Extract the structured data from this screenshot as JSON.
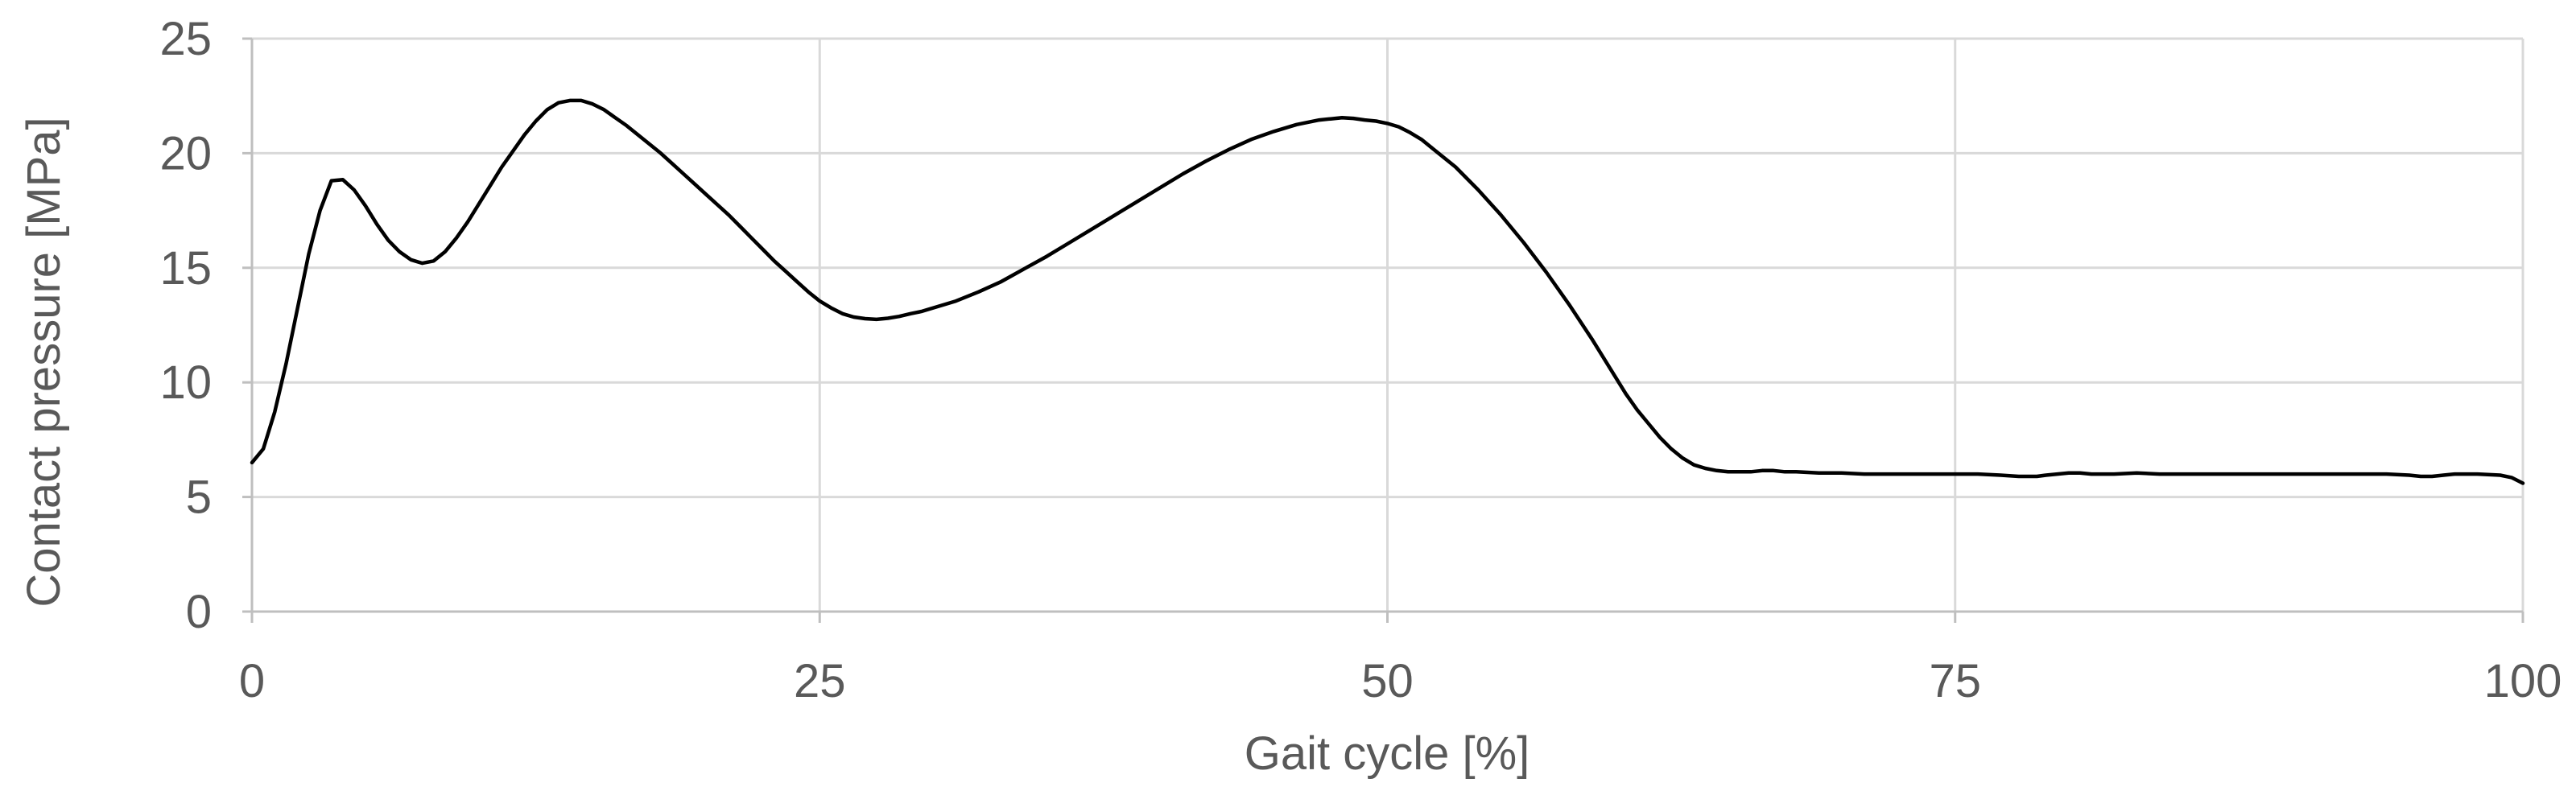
{
  "chart_data": {
    "type": "line",
    "title": "",
    "xlabel": "Gait cycle [%]",
    "ylabel": "Contact pressure [MPa]",
    "xlim": [
      0,
      100
    ],
    "ylim": [
      0,
      25
    ],
    "x_ticks": [
      0,
      25,
      50,
      75,
      100
    ],
    "y_ticks": [
      0,
      5,
      10,
      15,
      20,
      25
    ],
    "grid": true,
    "legend_position": "none",
    "line_color": "#000000",
    "line_width": 4.5,
    "series": [
      {
        "name": "Contact pressure",
        "points": [
          [
            0,
            6.5
          ],
          [
            0.5,
            7.1
          ],
          [
            1,
            8.7
          ],
          [
            1.5,
            10.8
          ],
          [
            2,
            13.2
          ],
          [
            2.5,
            15.6
          ],
          [
            3,
            17.5
          ],
          [
            3.5,
            18.8
          ],
          [
            4,
            18.85
          ],
          [
            4.5,
            18.4
          ],
          [
            5,
            17.7
          ],
          [
            5.5,
            16.9
          ],
          [
            6,
            16.2
          ],
          [
            6.5,
            15.7
          ],
          [
            7,
            15.35
          ],
          [
            7.5,
            15.2
          ],
          [
            8,
            15.3
          ],
          [
            8.5,
            15.7
          ],
          [
            9,
            16.3
          ],
          [
            9.5,
            17.0
          ],
          [
            10,
            17.8
          ],
          [
            10.5,
            18.6
          ],
          [
            11,
            19.4
          ],
          [
            11.5,
            20.1
          ],
          [
            12,
            20.8
          ],
          [
            12.5,
            21.4
          ],
          [
            13,
            21.9
          ],
          [
            13.5,
            22.2
          ],
          [
            14,
            22.3
          ],
          [
            14.5,
            22.3
          ],
          [
            15,
            22.15
          ],
          [
            15.5,
            21.9
          ],
          [
            16,
            21.55
          ],
          [
            16.5,
            21.2
          ],
          [
            17,
            20.8
          ],
          [
            17.5,
            20.4
          ],
          [
            18,
            20.0
          ],
          [
            18.5,
            19.55
          ],
          [
            19,
            19.1
          ],
          [
            19.5,
            18.65
          ],
          [
            20,
            18.2
          ],
          [
            20.5,
            17.75
          ],
          [
            21,
            17.3
          ],
          [
            21.5,
            16.8
          ],
          [
            22,
            16.3
          ],
          [
            22.5,
            15.8
          ],
          [
            23,
            15.3
          ],
          [
            23.5,
            14.85
          ],
          [
            24,
            14.4
          ],
          [
            24.5,
            13.95
          ],
          [
            25,
            13.55
          ],
          [
            25.5,
            13.25
          ],
          [
            26,
            13.0
          ],
          [
            26.5,
            12.85
          ],
          [
            27,
            12.78
          ],
          [
            27.5,
            12.75
          ],
          [
            28,
            12.8
          ],
          [
            28.5,
            12.88
          ],
          [
            29,
            13.0
          ],
          [
            29.5,
            13.1
          ],
          [
            30,
            13.25
          ],
          [
            31,
            13.55
          ],
          [
            32,
            13.95
          ],
          [
            33,
            14.4
          ],
          [
            34,
            14.95
          ],
          [
            35,
            15.5
          ],
          [
            36,
            16.1
          ],
          [
            37,
            16.7
          ],
          [
            38,
            17.3
          ],
          [
            39,
            17.9
          ],
          [
            40,
            18.5
          ],
          [
            41,
            19.1
          ],
          [
            42,
            19.65
          ],
          [
            43,
            20.15
          ],
          [
            44,
            20.6
          ],
          [
            45,
            20.95
          ],
          [
            46,
            21.25
          ],
          [
            47,
            21.45
          ],
          [
            47.5,
            21.5
          ],
          [
            48,
            21.55
          ],
          [
            48.5,
            21.52
          ],
          [
            49,
            21.45
          ],
          [
            49.5,
            21.4
          ],
          [
            50,
            21.3
          ],
          [
            50.5,
            21.15
          ],
          [
            51,
            20.9
          ],
          [
            51.5,
            20.6
          ],
          [
            52,
            20.2
          ],
          [
            53,
            19.4
          ],
          [
            54,
            18.4
          ],
          [
            55,
            17.3
          ],
          [
            56,
            16.1
          ],
          [
            57,
            14.8
          ],
          [
            58,
            13.4
          ],
          [
            59,
            11.9
          ],
          [
            60,
            10.3
          ],
          [
            60.5,
            9.5
          ],
          [
            61,
            8.8
          ],
          [
            61.5,
            8.2
          ],
          [
            62,
            7.6
          ],
          [
            62.5,
            7.1
          ],
          [
            63,
            6.7
          ],
          [
            63.5,
            6.4
          ],
          [
            64,
            6.25
          ],
          [
            64.5,
            6.15
          ],
          [
            65,
            6.1
          ],
          [
            66,
            6.1
          ],
          [
            66.5,
            6.15
          ],
          [
            67,
            6.15
          ],
          [
            67.5,
            6.1
          ],
          [
            68,
            6.1
          ],
          [
            69,
            6.05
          ],
          [
            70,
            6.05
          ],
          [
            71,
            6.0
          ],
          [
            72,
            6.0
          ],
          [
            73,
            6.0
          ],
          [
            74,
            6.0
          ],
          [
            75,
            6.0
          ],
          [
            76,
            6.0
          ],
          [
            77,
            5.95
          ],
          [
            77.8,
            5.9
          ],
          [
            78.6,
            5.9
          ],
          [
            79,
            5.95
          ],
          [
            79.5,
            6.0
          ],
          [
            80,
            6.05
          ],
          [
            80.5,
            6.05
          ],
          [
            81,
            6.0
          ],
          [
            82,
            6.0
          ],
          [
            83,
            6.05
          ],
          [
            84,
            6.0
          ],
          [
            85,
            6.0
          ],
          [
            86,
            6.0
          ],
          [
            87,
            6.0
          ],
          [
            88,
            6.0
          ],
          [
            89,
            6.0
          ],
          [
            90,
            6.0
          ],
          [
            91,
            6.0
          ],
          [
            92,
            6.0
          ],
          [
            93,
            6.0
          ],
          [
            94,
            6.0
          ],
          [
            95,
            5.95
          ],
          [
            95.5,
            5.9
          ],
          [
            96,
            5.9
          ],
          [
            96.5,
            5.95
          ],
          [
            97,
            6.0
          ],
          [
            98,
            6.0
          ],
          [
            99,
            5.95
          ],
          [
            99.5,
            5.85
          ],
          [
            100,
            5.6
          ]
        ]
      }
    ]
  },
  "styles": {
    "background": "#FFFFFF",
    "text_color": "#595959",
    "gridline_color": "#D9D9D9",
    "axis_line_color": "#BFBFBF"
  }
}
